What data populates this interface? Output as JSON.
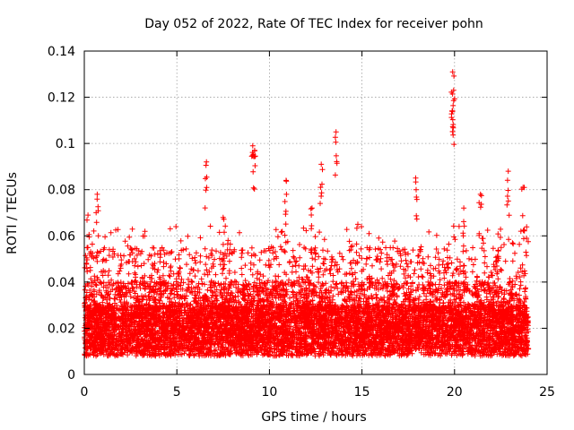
{
  "chart_data": {
    "type": "scatter",
    "title": "Day 052 of 2022, Rate Of TEC Index for receiver pohn",
    "xlabel": "GPS time / hours",
    "ylabel": "ROTI / TECUs",
    "xlim": [
      0,
      25
    ],
    "ylim": [
      0,
      0.14
    ],
    "xticks": [
      0,
      5,
      10,
      15,
      20,
      25
    ],
    "yticks": [
      0,
      0.02,
      0.04,
      0.06,
      0.08,
      0.1,
      0.12,
      0.14
    ],
    "xtick_labels": [
      "0",
      "5",
      "10",
      "15",
      "20",
      "25"
    ],
    "ytick_labels": [
      "0",
      "0.02",
      "0.04",
      "0.06",
      "0.08",
      "0.1",
      "0.12",
      "0.14"
    ],
    "grid": true,
    "marker": "+",
    "series_color": "#ff0000",
    "data_range": {
      "x": [
        0,
        24
      ],
      "y_typical": [
        0.005,
        0.06
      ]
    },
    "peaks": [
      {
        "x": 0.2,
        "y": 0.069
      },
      {
        "x": 0.7,
        "y": 0.078
      },
      {
        "x": 6.6,
        "y": 0.092
      },
      {
        "x": 7.5,
        "y": 0.068
      },
      {
        "x": 9.1,
        "y": 0.099
      },
      {
        "x": 9.2,
        "y": 0.097
      },
      {
        "x": 10.9,
        "y": 0.084
      },
      {
        "x": 12.3,
        "y": 0.072
      },
      {
        "x": 12.8,
        "y": 0.091
      },
      {
        "x": 13.6,
        "y": 0.105
      },
      {
        "x": 17.9,
        "y": 0.085
      },
      {
        "x": 19.9,
        "y": 0.131
      },
      {
        "x": 19.95,
        "y": 0.123
      },
      {
        "x": 19.9,
        "y": 0.114
      },
      {
        "x": 20.5,
        "y": 0.072
      },
      {
        "x": 21.4,
        "y": 0.078
      },
      {
        "x": 22.9,
        "y": 0.088
      },
      {
        "x": 23.7,
        "y": 0.081
      }
    ]
  }
}
